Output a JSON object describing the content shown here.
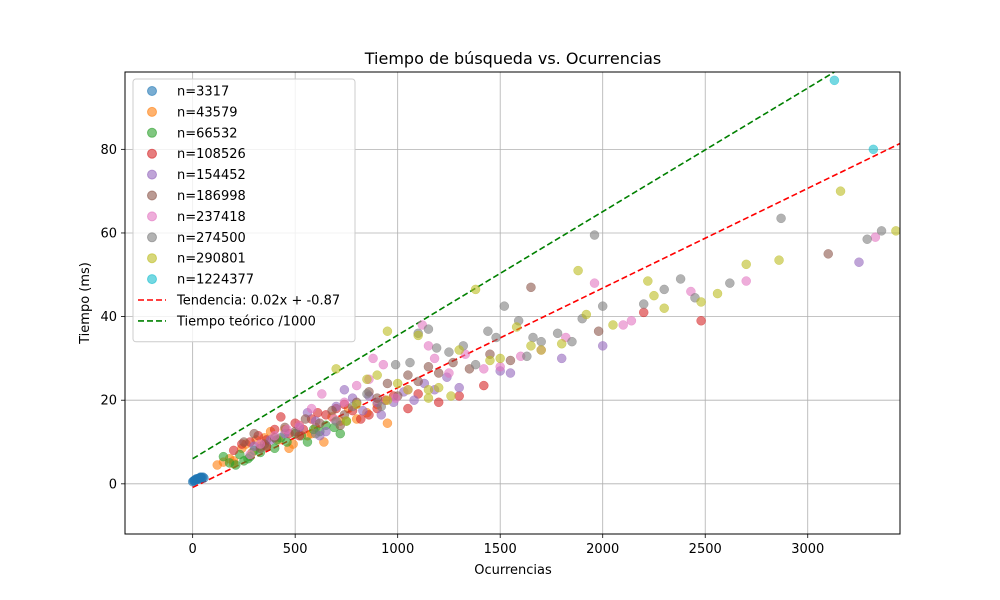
{
  "chart_data": {
    "type": "scatter",
    "title": "Tiempo de búsqueda vs. Ocurrencias",
    "xlabel": "Ocurrencias",
    "ylabel": "Tiempo (ms)",
    "xlim": [
      -330,
      3450
    ],
    "ylim": [
      -12,
      98.5
    ],
    "xticks": [
      0,
      500,
      1000,
      1500,
      2000,
      2500,
      3000
    ],
    "yticks": [
      0,
      20,
      40,
      60,
      80
    ],
    "grid": true,
    "legend_position": "top-left",
    "series": [
      {
        "name": "n=3317",
        "color": "#1f77b4",
        "points": [
          [
            0,
            0.5
          ],
          [
            5,
            0.7
          ],
          [
            10,
            0.9
          ],
          [
            15,
            1.0
          ],
          [
            20,
            1.1
          ],
          [
            25,
            1.2
          ],
          [
            30,
            1.3
          ],
          [
            35,
            1.4
          ],
          [
            40,
            1.5
          ],
          [
            45,
            1.5
          ],
          [
            50,
            1.6
          ],
          [
            55,
            1.4
          ],
          [
            8,
            0.8
          ],
          [
            18,
            1.2
          ],
          [
            28,
            1.1
          ],
          [
            38,
            1.6
          ]
        ]
      },
      {
        "name": "n=43579",
        "color": "#ff7f0e",
        "points": [
          [
            120,
            4.5
          ],
          [
            150,
            5.2
          ],
          [
            180,
            6.0
          ],
          [
            200,
            4.8
          ],
          [
            240,
            8.5
          ],
          [
            260,
            9.5
          ],
          [
            290,
            7.5
          ],
          [
            310,
            10.5
          ],
          [
            350,
            11.0
          ],
          [
            380,
            12.5
          ],
          [
            420,
            10.5
          ],
          [
            450,
            13.0
          ],
          [
            490,
            9.5
          ],
          [
            520,
            14.0
          ],
          [
            560,
            11.5
          ],
          [
            600,
            13.5
          ],
          [
            640,
            10.0
          ],
          [
            680,
            16.0
          ],
          [
            720,
            15.0
          ],
          [
            760,
            18.0
          ],
          [
            800,
            15.5
          ],
          [
            850,
            17.0
          ],
          [
            900,
            19.0
          ],
          [
            950,
            14.5
          ],
          [
            200,
            5.5
          ],
          [
            330,
            9.0
          ],
          [
            470,
            8.5
          ],
          [
            580,
            12.0
          ]
        ]
      },
      {
        "name": "n=66532",
        "color": "#2ca02c",
        "points": [
          [
            150,
            6.5
          ],
          [
            180,
            5.0
          ],
          [
            210,
            4.5
          ],
          [
            230,
            7.0
          ],
          [
            250,
            5.5
          ],
          [
            270,
            6.0
          ],
          [
            300,
            8.0
          ],
          [
            330,
            7.5
          ],
          [
            360,
            9.0
          ],
          [
            400,
            8.5
          ],
          [
            430,
            11.0
          ],
          [
            460,
            10.0
          ],
          [
            500,
            12.0
          ],
          [
            530,
            11.5
          ],
          [
            560,
            10.0
          ],
          [
            590,
            13.0
          ],
          [
            620,
            12.5
          ],
          [
            650,
            14.0
          ],
          [
            690,
            13.5
          ],
          [
            720,
            12.0
          ],
          [
            750,
            15.0
          ],
          [
            280,
            6.5
          ],
          [
            410,
            10.5
          ]
        ]
      },
      {
        "name": "n=108526",
        "color": "#d62728",
        "points": [
          [
            200,
            8.0
          ],
          [
            240,
            9.5
          ],
          [
            280,
            10.0
          ],
          [
            320,
            11.5
          ],
          [
            360,
            9.0
          ],
          [
            400,
            13.0
          ],
          [
            430,
            16.0
          ],
          [
            470,
            12.0
          ],
          [
            500,
            14.5
          ],
          [
            540,
            13.0
          ],
          [
            580,
            15.5
          ],
          [
            610,
            17.0
          ],
          [
            650,
            16.5
          ],
          [
            700,
            18.0
          ],
          [
            740,
            19.0
          ],
          [
            780,
            17.5
          ],
          [
            820,
            15.5
          ],
          [
            860,
            16.5
          ],
          [
            900,
            18.0
          ],
          [
            940,
            20.0
          ],
          [
            980,
            21.0
          ],
          [
            1050,
            18.0
          ],
          [
            1100,
            21.5
          ],
          [
            1200,
            19.5
          ],
          [
            1300,
            21.0
          ],
          [
            1420,
            23.5
          ],
          [
            2200,
            41.0
          ],
          [
            2480,
            39.0
          ],
          [
            360,
            10.5
          ],
          [
            520,
            11.5
          ]
        ]
      },
      {
        "name": "n=154452",
        "color": "#9467bd",
        "points": [
          [
            300,
            9.0
          ],
          [
            380,
            10.5
          ],
          [
            450,
            12.0
          ],
          [
            520,
            13.5
          ],
          [
            560,
            17.0
          ],
          [
            600,
            15.0
          ],
          [
            650,
            12.5
          ],
          [
            700,
            18.5
          ],
          [
            740,
            22.5
          ],
          [
            780,
            20.5
          ],
          [
            830,
            17.5
          ],
          [
            860,
            21.0
          ],
          [
            920,
            16.5
          ],
          [
            980,
            19.5
          ],
          [
            1030,
            22.0
          ],
          [
            1080,
            20.0
          ],
          [
            1130,
            24.0
          ],
          [
            1180,
            22.5
          ],
          [
            1240,
            25.5
          ],
          [
            1300,
            23.0
          ],
          [
            1500,
            27.0
          ],
          [
            1550,
            26.5
          ],
          [
            1800,
            30.0
          ],
          [
            2000,
            33.0
          ],
          [
            3250,
            53.0
          ],
          [
            620,
            11.5
          ],
          [
            900,
            19.5
          ]
        ]
      },
      {
        "name": "n=186998",
        "color": "#8c564b",
        "points": [
          [
            250,
            10.0
          ],
          [
            300,
            12.0
          ],
          [
            350,
            9.5
          ],
          [
            400,
            11.0
          ],
          [
            450,
            13.5
          ],
          [
            500,
            12.5
          ],
          [
            550,
            15.5
          ],
          [
            620,
            14.5
          ],
          [
            680,
            17.5
          ],
          [
            740,
            16.5
          ],
          [
            800,
            19.5
          ],
          [
            860,
            22.0
          ],
          [
            900,
            20.5
          ],
          [
            950,
            24.0
          ],
          [
            1000,
            21.0
          ],
          [
            1050,
            26.0
          ],
          [
            1100,
            24.5
          ],
          [
            1150,
            28.0
          ],
          [
            1200,
            26.5
          ],
          [
            1270,
            29.0
          ],
          [
            1350,
            27.5
          ],
          [
            1450,
            31.0
          ],
          [
            1550,
            29.5
          ],
          [
            1650,
            47.0
          ],
          [
            1980,
            36.5
          ],
          [
            3100,
            55.0
          ],
          [
            330,
            8.5
          ],
          [
            720,
            14.0
          ]
        ]
      },
      {
        "name": "n=237418",
        "color": "#e377c2",
        "points": [
          [
            280,
            7.0
          ],
          [
            330,
            9.5
          ],
          [
            400,
            11.5
          ],
          [
            460,
            13.0
          ],
          [
            520,
            14.0
          ],
          [
            580,
            18.0
          ],
          [
            630,
            21.5
          ],
          [
            690,
            15.5
          ],
          [
            740,
            19.5
          ],
          [
            800,
            23.5
          ],
          [
            860,
            25.0
          ],
          [
            880,
            30.0
          ],
          [
            930,
            28.5
          ],
          [
            990,
            20.5
          ],
          [
            1050,
            22.5
          ],
          [
            1120,
            38.0
          ],
          [
            1180,
            30.0
          ],
          [
            1250,
            26.5
          ],
          [
            1330,
            31.0
          ],
          [
            1420,
            27.5
          ],
          [
            1500,
            28.0
          ],
          [
            1600,
            30.5
          ],
          [
            1700,
            32.0
          ],
          [
            1820,
            35.0
          ],
          [
            1960,
            48.0
          ],
          [
            2100,
            38.0
          ],
          [
            2140,
            39.0
          ],
          [
            2430,
            46.0
          ],
          [
            2700,
            48.5
          ],
          [
            3330,
            59.0
          ],
          [
            1150,
            33.0
          ]
        ]
      },
      {
        "name": "n=274500",
        "color": "#7f7f7f",
        "points": [
          [
            600,
            12.0
          ],
          [
            700,
            15.0
          ],
          [
            780,
            18.5
          ],
          [
            850,
            21.5
          ],
          [
            920,
            18.5
          ],
          [
            990,
            28.5
          ],
          [
            1060,
            29.0
          ],
          [
            1100,
            36.0
          ],
          [
            1150,
            37.0
          ],
          [
            1190,
            32.5
          ],
          [
            1250,
            31.5
          ],
          [
            1320,
            33.0
          ],
          [
            1380,
            28.5
          ],
          [
            1440,
            36.5
          ],
          [
            1520,
            42.5
          ],
          [
            1590,
            39.0
          ],
          [
            1660,
            35.0
          ],
          [
            1700,
            34.0
          ],
          [
            1780,
            36.0
          ],
          [
            1850,
            34.0
          ],
          [
            1900,
            39.5
          ],
          [
            1960,
            59.5
          ],
          [
            2000,
            42.5
          ],
          [
            2200,
            43.0
          ],
          [
            2300,
            46.5
          ],
          [
            2380,
            49.0
          ],
          [
            2450,
            44.5
          ],
          [
            2620,
            48.0
          ],
          [
            2870,
            63.5
          ],
          [
            3290,
            58.5
          ],
          [
            3360,
            60.5
          ],
          [
            1480,
            35.0
          ],
          [
            1630,
            30.5
          ]
        ]
      },
      {
        "name": "n=290801",
        "color": "#bcbd22",
        "points": [
          [
            700,
            27.5
          ],
          [
            750,
            15.0
          ],
          [
            800,
            19.0
          ],
          [
            850,
            25.0
          ],
          [
            900,
            26.0
          ],
          [
            950,
            36.5
          ],
          [
            1000,
            24.0
          ],
          [
            1050,
            22.5
          ],
          [
            1100,
            35.5
          ],
          [
            1150,
            20.5
          ],
          [
            1200,
            23.0
          ],
          [
            1260,
            21.0
          ],
          [
            1300,
            32.0
          ],
          [
            1380,
            46.5
          ],
          [
            1450,
            29.5
          ],
          [
            1500,
            30.0
          ],
          [
            1580,
            37.5
          ],
          [
            1650,
            33.0
          ],
          [
            1700,
            32.0
          ],
          [
            1800,
            33.5
          ],
          [
            1880,
            51.0
          ],
          [
            1920,
            40.5
          ],
          [
            2050,
            38.0
          ],
          [
            2220,
            48.5
          ],
          [
            2250,
            45.0
          ],
          [
            2300,
            42.0
          ],
          [
            2480,
            43.5
          ],
          [
            2560,
            45.5
          ],
          [
            2700,
            52.5
          ],
          [
            2860,
            53.5
          ],
          [
            3160,
            70.0
          ],
          [
            3430,
            60.5
          ],
          [
            950,
            20.0
          ],
          [
            1150,
            22.5
          ]
        ]
      },
      {
        "name": "n=1224377",
        "color": "#17becf",
        "points": [
          [
            3130,
            96.5
          ],
          [
            3320,
            80.0
          ]
        ]
      }
    ],
    "trend_lines": [
      {
        "name": "Tendencia: 0.02x + -0.87",
        "color": "#ff0000",
        "style": "dashed",
        "x": [
          0,
          3450
        ],
        "y": [
          -0.87,
          81.4
        ]
      },
      {
        "name": "Tiempo teórico /1000",
        "color": "#008000",
        "style": "dashed",
        "x": [
          0,
          3130
        ],
        "y": [
          6.0,
          98.5
        ]
      }
    ]
  }
}
